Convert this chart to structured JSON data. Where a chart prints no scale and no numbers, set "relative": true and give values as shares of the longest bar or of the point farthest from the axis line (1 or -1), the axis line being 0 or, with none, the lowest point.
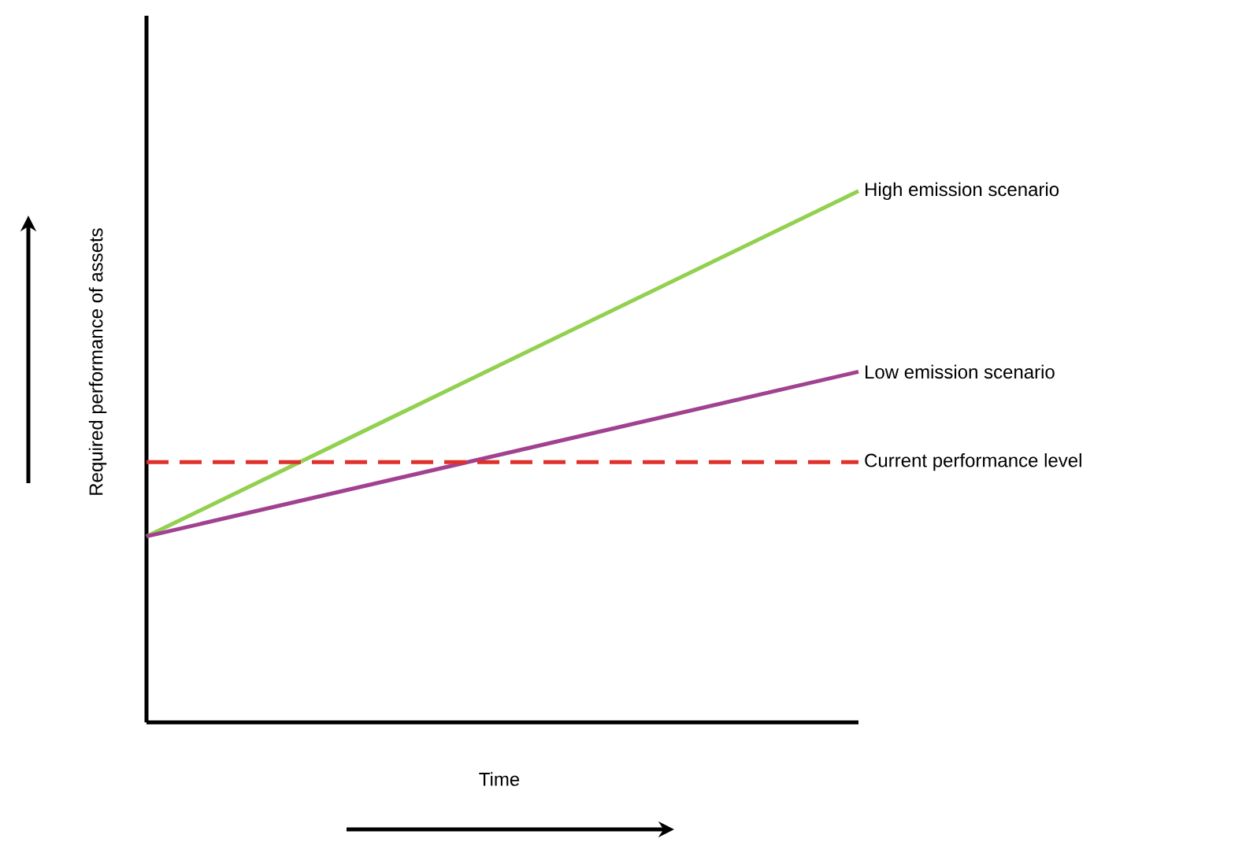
{
  "chart_data": {
    "type": "line",
    "xlabel": "Time",
    "ylabel": "Required performance of assets",
    "relative": true,
    "categories": [
      null,
      null
    ],
    "line_style": "solid",
    "marker": "none",
    "series": [
      {
        "name": "High emission scenario",
        "color": "#92d050",
        "values": [
          0.35,
          1
        ]
      },
      {
        "name": "Low emission scenario",
        "color": "#a0428f",
        "values": [
          0.35,
          0.66
        ]
      },
      {
        "name": "Current performance level",
        "color": "#e0302a",
        "values": [
          0.49,
          0.49
        ],
        "line_style": "dashed"
      }
    ]
  }
}
